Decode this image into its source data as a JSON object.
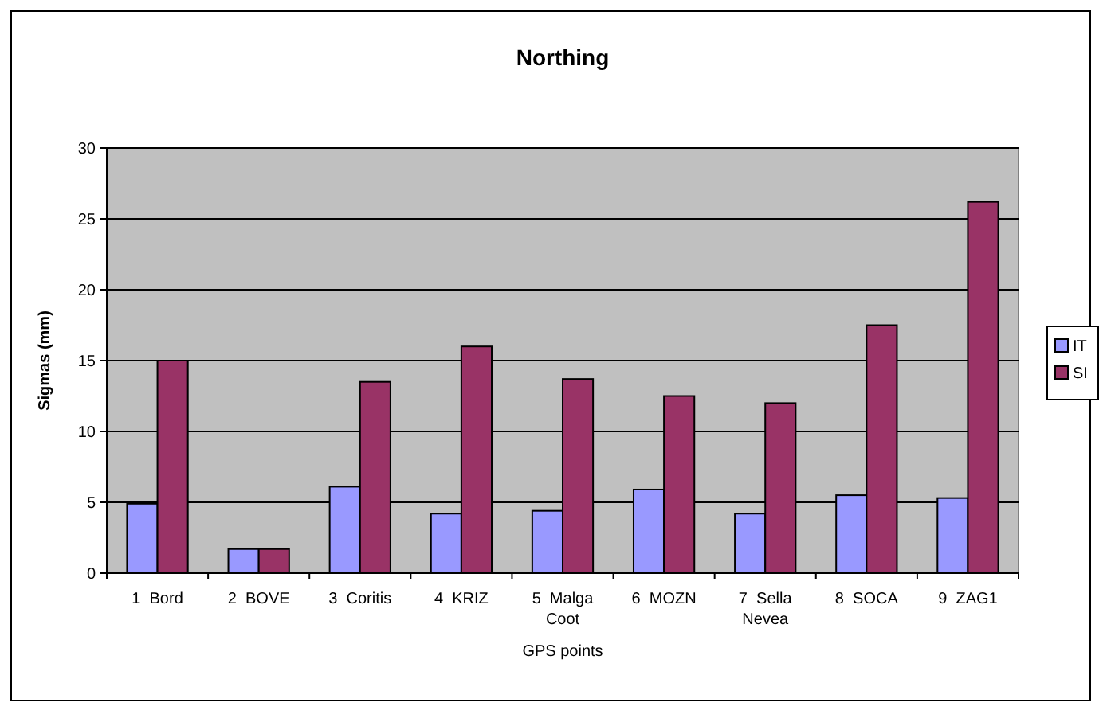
{
  "chart_data": {
    "type": "bar",
    "title": "Northing",
    "xlabel": "GPS points",
    "ylabel": "Sigmas (mm)",
    "categories": [
      "1  Bord",
      "2  BOVE",
      "3  Coritis",
      "4  KRIZ",
      "5  Malga Coot",
      "6  MOZN",
      "7  Sella Nevea",
      "8  SOCA",
      "9  ZAG1"
    ],
    "series": [
      {
        "name": "IT",
        "color": "#9999ff",
        "values": [
          4.9,
          1.7,
          6.1,
          4.2,
          4.4,
          5.9,
          4.2,
          5.5,
          5.3
        ]
      },
      {
        "name": "SI",
        "color": "#993366",
        "values": [
          15.0,
          1.7,
          13.5,
          16.0,
          13.7,
          12.5,
          12.0,
          17.5,
          26.2
        ]
      }
    ],
    "ylim": [
      0,
      30
    ],
    "yticks": [
      0,
      5,
      10,
      15,
      20,
      25,
      30
    ],
    "grid": "y",
    "legend": "right"
  }
}
